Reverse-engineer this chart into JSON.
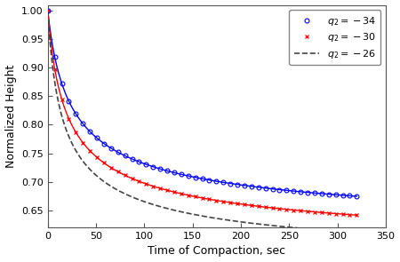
{
  "title": "",
  "xlabel": "Time of Compaction, sec",
  "ylabel": "Normalized Height",
  "xlim": [
    0,
    350
  ],
  "ylim": [
    0.62,
    1.01
  ],
  "yticks": [
    0.65,
    0.7,
    0.75,
    0.8,
    0.85,
    0.9,
    0.95,
    1.0
  ],
  "xticks": [
    0,
    50,
    100,
    150,
    200,
    250,
    300,
    350
  ],
  "line1": {
    "label": "$q_2 = -34$",
    "color": "#0000FF",
    "a": 0.57,
    "b": 0.005,
    "end_val": 0.668
  },
  "line2": {
    "label": "$q_2 = -30$",
    "color": "#FF0000",
    "a": 0.54,
    "b": 0.006,
    "end_val": 0.648
  },
  "line3": {
    "label": "$q_2 = -26$",
    "color": "#444444",
    "a": 0.51,
    "b": 0.0075,
    "end_val": 0.633
  },
  "background_color": "#ffffff",
  "legend_fontsize": 8,
  "axis_fontsize": 9,
  "tick_fontsize": 8,
  "n_markers": 45
}
